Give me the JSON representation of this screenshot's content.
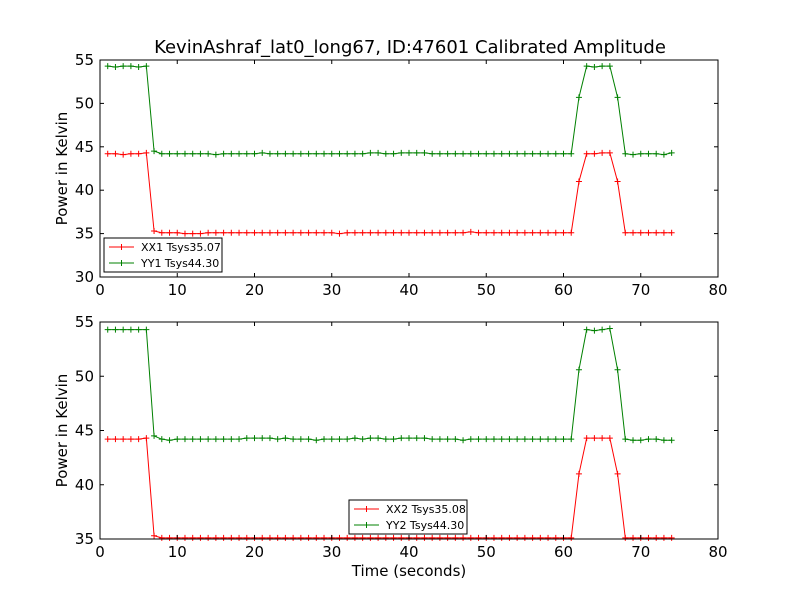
{
  "figure": {
    "title": "KevinAshraf_lat0_long67, ID:47601 Calibrated Amplitude"
  },
  "chart_data": [
    {
      "type": "line",
      "title": "KevinAshraf_lat0_long67, ID:47601 Calibrated Amplitude",
      "xlabel": "",
      "ylabel": "Power in Kelvin",
      "xlim": [
        0,
        80
      ],
      "ylim": [
        30,
        55
      ],
      "xticks": [
        0,
        10,
        20,
        30,
        40,
        50,
        60,
        70,
        80
      ],
      "yticks": [
        30,
        35,
        40,
        45,
        50,
        55
      ],
      "legend": "lower-left",
      "grid": false,
      "x": [
        1,
        2,
        3,
        4,
        5,
        6,
        7,
        8,
        9,
        10,
        11,
        12,
        13,
        14,
        15,
        16,
        17,
        18,
        19,
        20,
        21,
        22,
        23,
        24,
        25,
        26,
        27,
        28,
        29,
        30,
        31,
        32,
        33,
        34,
        35,
        36,
        37,
        38,
        39,
        40,
        41,
        42,
        43,
        44,
        45,
        46,
        47,
        48,
        49,
        50,
        51,
        52,
        53,
        54,
        55,
        56,
        57,
        58,
        59,
        60,
        61,
        62,
        63,
        64,
        65,
        66,
        67,
        68,
        69,
        70,
        71,
        72,
        73,
        74
      ],
      "series": [
        {
          "name": "XX1 Tsys35.07",
          "color": "#ff0000",
          "values": [
            44.2,
            44.2,
            44.1,
            44.2,
            44.2,
            44.3,
            35.3,
            35.1,
            35.1,
            35.1,
            35.0,
            35.0,
            35.0,
            35.1,
            35.1,
            35.1,
            35.1,
            35.1,
            35.1,
            35.1,
            35.1,
            35.1,
            35.1,
            35.1,
            35.1,
            35.1,
            35.1,
            35.1,
            35.1,
            35.1,
            35.0,
            35.1,
            35.1,
            35.1,
            35.1,
            35.1,
            35.1,
            35.1,
            35.1,
            35.1,
            35.1,
            35.1,
            35.1,
            35.1,
            35.1,
            35.1,
            35.1,
            35.2,
            35.1,
            35.1,
            35.1,
            35.1,
            35.1,
            35.1,
            35.1,
            35.1,
            35.1,
            35.1,
            35.1,
            35.1,
            35.1,
            41.0,
            44.2,
            44.2,
            44.3,
            44.3,
            41.0,
            35.1,
            35.1,
            35.1,
            35.1,
            35.1,
            35.1,
            35.1
          ]
        },
        {
          "name": "YY1 Tsys44.30",
          "color": "#008000",
          "values": [
            54.3,
            54.2,
            54.3,
            54.3,
            54.2,
            54.3,
            44.5,
            44.2,
            44.2,
            44.2,
            44.2,
            44.2,
            44.2,
            44.2,
            44.1,
            44.2,
            44.2,
            44.2,
            44.2,
            44.2,
            44.3,
            44.2,
            44.2,
            44.2,
            44.2,
            44.2,
            44.2,
            44.2,
            44.2,
            44.2,
            44.2,
            44.2,
            44.2,
            44.2,
            44.3,
            44.3,
            44.2,
            44.2,
            44.3,
            44.3,
            44.3,
            44.3,
            44.2,
            44.2,
            44.2,
            44.2,
            44.2,
            44.2,
            44.2,
            44.2,
            44.2,
            44.2,
            44.2,
            44.2,
            44.2,
            44.2,
            44.2,
            44.2,
            44.2,
            44.2,
            44.2,
            50.7,
            54.3,
            54.2,
            54.3,
            54.3,
            50.7,
            44.2,
            44.1,
            44.2,
            44.2,
            44.2,
            44.1,
            44.3
          ]
        }
      ]
    },
    {
      "type": "line",
      "title": "",
      "xlabel": "Time (seconds)",
      "ylabel": "Power in Kelvin",
      "xlim": [
        0,
        80
      ],
      "ylim": [
        35,
        55
      ],
      "xticks": [
        0,
        10,
        20,
        30,
        40,
        50,
        60,
        70,
        80
      ],
      "yticks": [
        35,
        40,
        45,
        50,
        55
      ],
      "legend": "lower-center",
      "grid": false,
      "x": [
        1,
        2,
        3,
        4,
        5,
        6,
        7,
        8,
        9,
        10,
        11,
        12,
        13,
        14,
        15,
        16,
        17,
        18,
        19,
        20,
        21,
        22,
        23,
        24,
        25,
        26,
        27,
        28,
        29,
        30,
        31,
        32,
        33,
        34,
        35,
        36,
        37,
        38,
        39,
        40,
        41,
        42,
        43,
        44,
        45,
        46,
        47,
        48,
        49,
        50,
        51,
        52,
        53,
        54,
        55,
        56,
        57,
        58,
        59,
        60,
        61,
        62,
        63,
        64,
        65,
        66,
        67,
        68,
        69,
        70,
        71,
        72,
        73,
        74
      ],
      "series": [
        {
          "name": "XX2 Tsys35.08",
          "color": "#ff0000",
          "values": [
            44.2,
            44.2,
            44.2,
            44.2,
            44.2,
            44.3,
            35.3,
            35.1,
            35.1,
            35.1,
            35.1,
            35.1,
            35.1,
            35.1,
            35.1,
            35.1,
            35.1,
            35.1,
            35.1,
            35.1,
            35.1,
            35.1,
            35.1,
            35.1,
            35.1,
            35.1,
            35.1,
            35.1,
            35.1,
            35.1,
            35.1,
            35.1,
            35.1,
            35.1,
            35.1,
            35.1,
            35.1,
            35.1,
            35.1,
            35.1,
            35.1,
            35.1,
            35.1,
            35.1,
            35.1,
            35.1,
            35.1,
            35.1,
            35.1,
            35.1,
            35.1,
            35.1,
            35.1,
            35.1,
            35.1,
            35.1,
            35.1,
            35.1,
            35.1,
            35.1,
            35.1,
            41.0,
            44.3,
            44.3,
            44.3,
            44.3,
            41.0,
            35.1,
            35.1,
            35.1,
            35.1,
            35.1,
            35.1,
            35.1
          ]
        },
        {
          "name": "YY2 Tsys44.30",
          "color": "#008000",
          "values": [
            54.3,
            54.3,
            54.3,
            54.3,
            54.3,
            54.3,
            44.5,
            44.2,
            44.1,
            44.2,
            44.2,
            44.2,
            44.2,
            44.2,
            44.2,
            44.2,
            44.2,
            44.2,
            44.3,
            44.3,
            44.3,
            44.3,
            44.2,
            44.3,
            44.2,
            44.2,
            44.2,
            44.1,
            44.2,
            44.2,
            44.2,
            44.2,
            44.3,
            44.2,
            44.3,
            44.3,
            44.2,
            44.2,
            44.3,
            44.3,
            44.3,
            44.3,
            44.2,
            44.2,
            44.2,
            44.2,
            44.1,
            44.2,
            44.2,
            44.2,
            44.2,
            44.2,
            44.2,
            44.2,
            44.2,
            44.2,
            44.2,
            44.2,
            44.2,
            44.2,
            44.2,
            50.6,
            54.3,
            54.2,
            54.3,
            54.4,
            50.6,
            44.2,
            44.1,
            44.1,
            44.2,
            44.2,
            44.1,
            44.1
          ]
        }
      ]
    }
  ]
}
